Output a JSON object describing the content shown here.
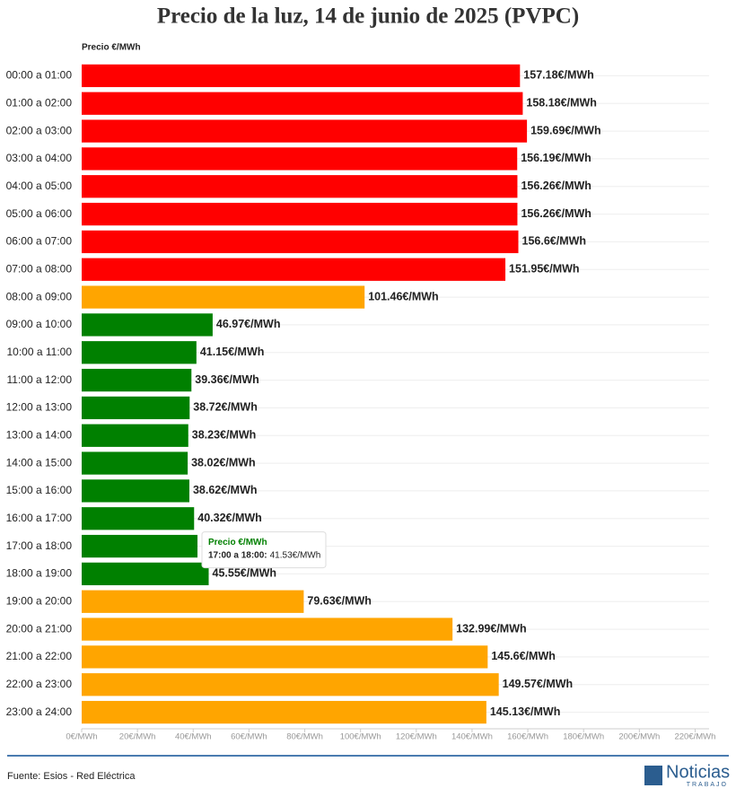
{
  "chart_data": {
    "type": "bar",
    "orientation": "horizontal",
    "title": "Precio de la luz, 14 de junio de 2025 (PVPC)",
    "axis_title": "Precio €/MWh",
    "categories": [
      "00:00 a 01:00",
      "01:00 a 02:00",
      "02:00 a 03:00",
      "03:00 a 04:00",
      "04:00 a 05:00",
      "05:00 a 06:00",
      "06:00 a 07:00",
      "07:00 a 08:00",
      "08:00 a 09:00",
      "09:00 a 10:00",
      "10:00 a 11:00",
      "11:00 a 12:00",
      "12:00 a 13:00",
      "13:00 a 14:00",
      "14:00 a 15:00",
      "15:00 a 16:00",
      "16:00 a 17:00",
      "17:00 a 18:00",
      "18:00 a 19:00",
      "19:00 a 20:00",
      "20:00 a 21:00",
      "21:00 a 22:00",
      "22:00 a 23:00",
      "23:00 a 24:00"
    ],
    "values": [
      157.18,
      158.18,
      159.69,
      156.19,
      156.26,
      156.26,
      156.6,
      151.95,
      101.46,
      46.97,
      41.15,
      39.36,
      38.72,
      38.23,
      38.02,
      38.62,
      40.32,
      41.53,
      45.55,
      79.63,
      132.99,
      145.6,
      149.57,
      145.13
    ],
    "value_labels": [
      "157.18€/MWh",
      "158.18€/MWh",
      "159.69€/MWh",
      "156.19€/MWh",
      "156.26€/MWh",
      "156.26€/MWh",
      "156.6€/MWh",
      "151.95€/MWh",
      "101.46€/MWh",
      "46.97€/MWh",
      "41.15€/MWh",
      "39.36€/MWh",
      "38.72€/MWh",
      "38.23€/MWh",
      "38.02€/MWh",
      "38.62€/MWh",
      "40.32€/MWh",
      null,
      "45.55€/MWh",
      "79.63€/MWh",
      "132.99€/MWh",
      "145.6€/MWh",
      "149.57€/MWh",
      "145.13€/MWh"
    ],
    "colors": [
      "#ff0000",
      "#ff0000",
      "#ff0000",
      "#ff0000",
      "#ff0000",
      "#ff0000",
      "#ff0000",
      "#ff0000",
      "#ffa500",
      "#008000",
      "#008000",
      "#008000",
      "#008000",
      "#008000",
      "#008000",
      "#008000",
      "#008000",
      "#008000",
      "#008000",
      "#ffa500",
      "#ffa500",
      "#ffa500",
      "#ffa500",
      "#ffa500"
    ],
    "xlim": [
      0,
      225
    ],
    "xticks": [
      {
        "value": 0,
        "label": "0€/MWh"
      },
      {
        "value": 20,
        "label": "20€/MWh"
      },
      {
        "value": 40,
        "label": "40€/MWh"
      },
      {
        "value": 60,
        "label": "60€/MWh"
      },
      {
        "value": 80,
        "label": "80€/MWh"
      },
      {
        "value": 100,
        "label": "100€/MWh"
      },
      {
        "value": 120,
        "label": "120€/MWh"
      },
      {
        "value": 140,
        "label": "140€/MWh"
      },
      {
        "value": 160,
        "label": "160€/MWh"
      },
      {
        "value": 180,
        "label": "180€/MWh"
      },
      {
        "value": 200,
        "label": "200€/MWh"
      },
      {
        "value": 220,
        "label": "220€/MWh"
      }
    ],
    "tooltip": {
      "title": "Precio €/MWh",
      "label": "17:00 a 18:00:",
      "value_label": "41.53€/MWh"
    },
    "source": "Fuente: Esios - Red Eléctrica",
    "logo": {
      "name": "Noticias",
      "sub": "TRABAJO"
    }
  }
}
